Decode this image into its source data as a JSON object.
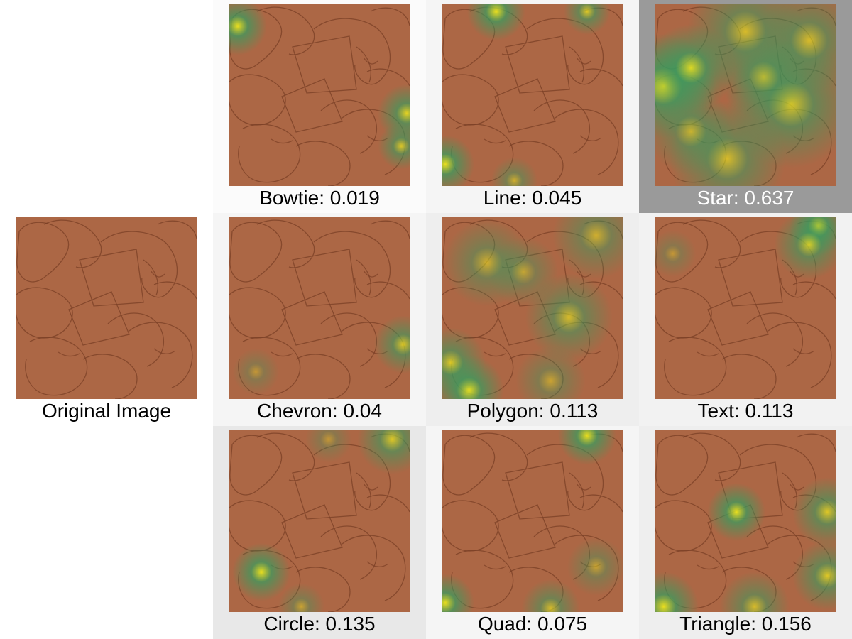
{
  "original": {
    "label": "Original Image"
  },
  "panels": [
    {
      "key": "bowtie",
      "label": "Bowtie: 0.019",
      "score": 0.019,
      "hot": [
        [
          0.05,
          0.12,
          0.1,
          1.0
        ],
        [
          0.98,
          0.6,
          0.1,
          0.9
        ],
        [
          0.95,
          0.78,
          0.08,
          0.8
        ]
      ]
    },
    {
      "key": "line",
      "label": "Line: 0.045",
      "score": 0.045,
      "hot": [
        [
          0.3,
          0.04,
          0.1,
          1.0
        ],
        [
          0.8,
          0.04,
          0.08,
          0.8
        ],
        [
          0.02,
          0.88,
          0.1,
          1.0
        ],
        [
          0.4,
          0.97,
          0.08,
          0.6
        ]
      ]
    },
    {
      "key": "star",
      "label": "Star: 0.637",
      "score": 0.637,
      "hot": [
        [
          0.05,
          0.45,
          0.18,
          1.0
        ],
        [
          0.2,
          0.35,
          0.15,
          0.9
        ],
        [
          0.5,
          0.15,
          0.2,
          0.7
        ],
        [
          0.75,
          0.55,
          0.22,
          0.8
        ],
        [
          0.4,
          0.85,
          0.2,
          0.7
        ],
        [
          0.85,
          0.2,
          0.18,
          0.7
        ],
        [
          0.2,
          0.7,
          0.15,
          0.6
        ],
        [
          0.6,
          0.4,
          0.15,
          0.6
        ]
      ]
    },
    {
      "key": "chevron",
      "label": "Chevron: 0.04",
      "score": 0.04,
      "hot": [
        [
          0.96,
          0.7,
          0.1,
          0.8
        ],
        [
          0.15,
          0.85,
          0.08,
          0.4
        ]
      ]
    },
    {
      "key": "polygon",
      "label": "Polygon: 0.113",
      "score": 0.113,
      "hot": [
        [
          0.15,
          0.95,
          0.12,
          1.0
        ],
        [
          0.05,
          0.8,
          0.12,
          0.8
        ],
        [
          0.7,
          0.55,
          0.15,
          0.7
        ],
        [
          0.25,
          0.25,
          0.15,
          0.6
        ],
        [
          0.85,
          0.1,
          0.15,
          0.6
        ],
        [
          0.45,
          0.3,
          0.12,
          0.5
        ],
        [
          0.6,
          0.9,
          0.12,
          0.5
        ]
      ]
    },
    {
      "key": "text",
      "label": "Text: 0.113",
      "score": 0.113,
      "hot": [
        [
          0.9,
          0.05,
          0.1,
          1.0
        ],
        [
          0.85,
          0.15,
          0.12,
          0.8
        ],
        [
          0.1,
          0.2,
          0.08,
          0.4
        ]
      ]
    },
    {
      "key": "circle",
      "label": "Circle: 0.135",
      "score": 0.135,
      "hot": [
        [
          0.18,
          0.78,
          0.1,
          1.0
        ],
        [
          0.9,
          0.05,
          0.12,
          0.8
        ],
        [
          0.55,
          0.05,
          0.08,
          0.4
        ],
        [
          0.4,
          0.97,
          0.08,
          0.5
        ]
      ]
    },
    {
      "key": "quad",
      "label": "Quad: 0.075",
      "score": 0.075,
      "hot": [
        [
          0.8,
          0.03,
          0.1,
          1.0
        ],
        [
          0.02,
          0.95,
          0.1,
          1.0
        ],
        [
          0.6,
          0.98,
          0.1,
          0.7
        ],
        [
          0.85,
          0.75,
          0.1,
          0.5
        ]
      ]
    },
    {
      "key": "triangle",
      "label": "Triangle: 0.156",
      "score": 0.156,
      "hot": [
        [
          0.05,
          0.97,
          0.12,
          1.0
        ],
        [
          0.45,
          0.45,
          0.1,
          1.0
        ],
        [
          0.95,
          0.8,
          0.12,
          0.8
        ],
        [
          0.95,
          0.45,
          0.12,
          0.8
        ],
        [
          0.55,
          0.97,
          0.12,
          0.7
        ]
      ]
    }
  ],
  "colors": {
    "tile_base": "#b06a47",
    "heat_low": "#3c9a5e",
    "heat_high": "#f2ec1a",
    "cell_backgrounds": [
      "#fbfbfb",
      "#f5f5f5",
      "#9a9a9a",
      "#f5f5f5",
      "#eeeeee",
      "#f2f2f2",
      "#e8e8e8",
      "#f5f5f5",
      "#eeeeee"
    ],
    "caption_default": "#000000",
    "caption_highlight": "#ffffff"
  },
  "highlight_index": 2
}
